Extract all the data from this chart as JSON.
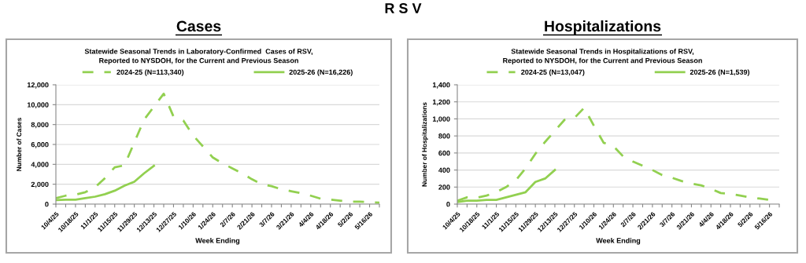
{
  "chart_data": [
    {
      "type": "line",
      "title": "Cases",
      "subtitle": "Statewide Seasonal Trends in Laboratory-Confirmed  Cases of RSV,\nReported to NYSDOH, for the Current and Previous Season",
      "annotations": [
        "R S V"
      ],
      "xlabel": "Week Ending",
      "ylabel": "Number of Cases",
      "categories": [
        "10/4/25",
        null,
        "10/18/25",
        null,
        "11/1/25",
        null,
        "11/15/25",
        null,
        "11/29/25",
        null,
        "12/13/25",
        null,
        "12/27/25",
        null,
        "1/10/26",
        null,
        "1/24/26",
        null,
        "2/7/26",
        null,
        "2/21/26",
        null,
        "3/7/26",
        null,
        "3/21/26",
        null,
        "4/4/26",
        null,
        "4/18/26",
        null,
        "5/2/26",
        null,
        "5/16/26",
        null
      ],
      "series": [
        {
          "name": "2024-25 (N=113,340)",
          "color": "#92d050",
          "line_style": "dashed",
          "values": [
            600,
            850,
            950,
            1200,
            1700,
            2600,
            3700,
            3900,
            6200,
            8500,
            9800,
            11100,
            8800,
            8400,
            6900,
            5800,
            4700,
            4100,
            3600,
            3100,
            2500,
            2000,
            1800,
            1500,
            1300,
            1100,
            850,
            550,
            450,
            350,
            250,
            250,
            200,
            150
          ]
        },
        {
          "name": "2025-26 (N=16,226)",
          "color": "#92d050",
          "line_style": "solid",
          "values": [
            400,
            450,
            450,
            600,
            750,
            1000,
            1350,
            1850,
            2250,
            3100,
            3850,
            null,
            null,
            null,
            null,
            null,
            null,
            null,
            null,
            null,
            null,
            null,
            null,
            null,
            null,
            null,
            null,
            null,
            null,
            null,
            null,
            null,
            null,
            null
          ]
        }
      ],
      "ylim": [
        0,
        12000
      ],
      "yticks": [
        0,
        {
          "value": 2000,
          "label": "2,000"
        },
        {
          "value": 4000,
          "label": "4,000"
        },
        {
          "value": 6000,
          "label": "6,000"
        },
        {
          "value": 8000,
          "label": "8,000"
        },
        {
          "value": 10000,
          "label": "10,000"
        },
        {
          "value": 12000,
          "label": "12,000"
        }
      ],
      "grid": "y",
      "legend": "top",
      "marker": "none"
    },
    {
      "type": "line",
      "title": "Hospitalizations",
      "subtitle": "Statewide Seasonal Trends in Hospitalizations of RSV,\nReported to NYSDOH, for the Current and Previous Season",
      "xlabel": "Week Ending",
      "ylabel": "Number of Hospitalizations",
      "categories": [
        "10/4/25",
        null,
        "10/18/25",
        null,
        "11/1/25",
        null,
        "11/15/25",
        null,
        "11/29/25",
        null,
        "12/13/25",
        null,
        "12/27/25",
        null,
        "1/10/26",
        null,
        "1/24/26",
        null,
        "2/7/26",
        null,
        "2/21/26",
        null,
        "3/7/26",
        null,
        "3/21/26",
        null,
        "4/4/26",
        null,
        "4/18/26",
        null,
        "5/2/26",
        null,
        "5/16/26",
        null
      ],
      "series": [
        {
          "name": "2024-25 (N=13,047)",
          "color": "#92d050",
          "line_style": "dashed",
          "values": [
            40,
            80,
            75,
            100,
            140,
            200,
            280,
            420,
            590,
            730,
            860,
            990,
            1010,
            1130,
            920,
            720,
            680,
            560,
            500,
            450,
            400,
            340,
            310,
            270,
            240,
            220,
            180,
            130,
            120,
            100,
            80,
            65,
            50,
            null
          ]
        },
        {
          "name": "2025-26 (N=1,539)",
          "color": "#92d050",
          "line_style": "solid",
          "values": [
            25,
            40,
            40,
            50,
            50,
            80,
            110,
            140,
            260,
            300,
            400,
            null,
            null,
            null,
            null,
            null,
            null,
            null,
            null,
            null,
            null,
            null,
            null,
            null,
            null,
            null,
            null,
            null,
            null,
            null,
            null,
            null,
            null,
            null
          ]
        }
      ],
      "ylim": [
        0,
        1400
      ],
      "yticks": [
        0,
        200,
        400,
        600,
        800,
        {
          "value": 1000,
          "label": "1,000"
        },
        {
          "value": 1200,
          "label": "1,200"
        },
        {
          "value": 1400,
          "label": "1,400"
        }
      ],
      "grid": "y",
      "legend": "top",
      "marker": "none"
    }
  ]
}
